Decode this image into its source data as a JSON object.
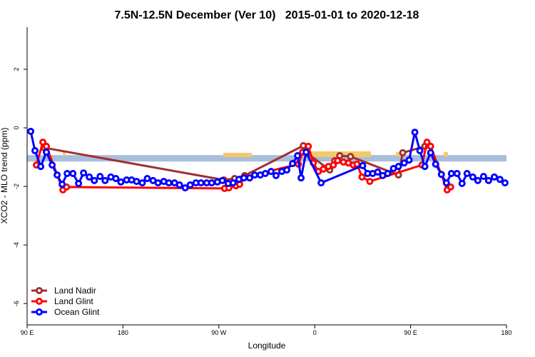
{
  "chart_data": {
    "type": "line",
    "title": "7.5N-12.5N December (Ver 10)   2015-01-01 to 2020-12-18",
    "xlabel": "Longitude",
    "ylabel": "XCO2 - MLO trend (ppm)",
    "xlim": [
      90,
      540
    ],
    "xticks": [
      {
        "value": 90,
        "label": "90 E"
      },
      180,
      {
        "value": 270,
        "label": "90 W"
      },
      {
        "value": 360,
        "label": "0"
      },
      {
        "value": 450,
        "label": "90 E"
      },
      {
        "value": 540,
        "label": "180"
      }
    ],
    "ylim": [
      -6.73,
      3.44
    ],
    "yticks": [
      2,
      0,
      -2,
      -4,
      -6
    ],
    "band": [
      -1.15,
      -0.93
    ],
    "band_color": "#a8bedc",
    "legend": "bottom-left",
    "series": [
      {
        "name": "Land Nadir",
        "color": "#a03030",
        "x": [
          106.1,
          274.7,
          284.8,
          294.2,
          349.3,
          353.3,
          374.1,
          378.8,
          383.5,
          393.6,
          438.6,
          442.6,
          463.4
        ],
        "values": [
          -0.68,
          -1.78,
          -1.73,
          -1.63,
          -0.61,
          -0.88,
          -1.44,
          -1.12,
          -0.95,
          -0.98,
          -1.61,
          -0.85,
          -0.63
        ]
      },
      {
        "name": "Land Glint",
        "color": "#ff0000",
        "x": [
          98.7,
          104.8,
          108.1,
          123.6,
          127,
          275.4,
          279.4,
          286.1,
          289.5,
          294.9,
          344.6,
          348.6,
          354,
          358.7,
          363.4,
          368.1,
          372.8,
          377.5,
          381.5,
          386.9,
          391.6,
          396.3,
          399.7,
          404.4,
          411.7,
          460.7,
          465.4,
          468.8,
          484.3,
          487.6
        ],
        "values": [
          -1.27,
          -0.49,
          -0.63,
          -2.12,
          -2.02,
          -2.07,
          -2.05,
          -1.98,
          -1.93,
          -1.68,
          -1.24,
          -0.83,
          -0.63,
          -1.2,
          -1.49,
          -1.41,
          -1.32,
          -1.27,
          -1.12,
          -1.17,
          -1.2,
          -1.27,
          -1.24,
          -1.68,
          -1.83,
          -1.27,
          -0.49,
          -0.63,
          -2.12,
          -2.02
        ]
      },
      {
        "name": "Ocean Glint",
        "color": "#0000ff",
        "x": [
          93.4,
          97.4,
          102.8,
          108.1,
          113.5,
          118.2,
          122.9,
          127.6,
          133,
          138.3,
          143,
          148.4,
          153.1,
          158.5,
          163.2,
          168.6,
          173.3,
          178,
          183.4,
          188.1,
          192.8,
          198.1,
          202.8,
          208.2,
          212.9,
          218.3,
          223,
          228.4,
          233.1,
          238.4,
          243.1,
          248.5,
          253.2,
          258.6,
          263.3,
          268.6,
          273.3,
          278.7,
          283.4,
          288.8,
          293.5,
          298.9,
          303.6,
          308.9,
          313.6,
          319,
          323.7,
          329.1,
          333.8,
          339.2,
          343.9,
          347.2,
          351.9,
          366,
          405,
          409.7,
          414.4,
          419.1,
          423.8,
          428.5,
          433.9,
          438.6,
          444,
          448.6,
          454,
          458.7,
          463.4,
          468.8,
          473.5,
          478.9,
          483.6,
          488.3,
          493.6,
          498.3,
          503,
          508.4,
          513.1,
          518.5,
          523.2,
          528.6,
          533.9,
          538.6
        ],
        "values": [
          -0.12,
          -0.78,
          -1.32,
          -0.83,
          -1.27,
          -1.61,
          -1.93,
          -1.56,
          -1.56,
          -1.9,
          -1.54,
          -1.68,
          -1.8,
          -1.66,
          -1.8,
          -1.68,
          -1.73,
          -1.85,
          -1.78,
          -1.78,
          -1.83,
          -1.88,
          -1.73,
          -1.8,
          -1.88,
          -1.83,
          -1.88,
          -1.88,
          -1.95,
          -2.05,
          -1.95,
          -1.88,
          -1.88,
          -1.88,
          -1.88,
          -1.85,
          -1.8,
          -1.9,
          -1.88,
          -1.76,
          -1.71,
          -1.71,
          -1.61,
          -1.61,
          -1.56,
          -1.49,
          -1.63,
          -1.49,
          -1.44,
          -1.22,
          -0.95,
          -1.71,
          -0.83,
          -1.88,
          -1.29,
          -1.56,
          -1.56,
          -1.51,
          -1.63,
          -1.56,
          -1.39,
          -1.32,
          -1.2,
          -1.1,
          -0.15,
          -0.78,
          -1.32,
          -0.85,
          -1.24,
          -1.59,
          -1.88,
          -1.56,
          -1.56,
          -1.9,
          -1.56,
          -1.68,
          -1.8,
          -1.66,
          -1.8,
          -1.68,
          -1.76,
          -1.88
        ]
      }
    ]
  }
}
